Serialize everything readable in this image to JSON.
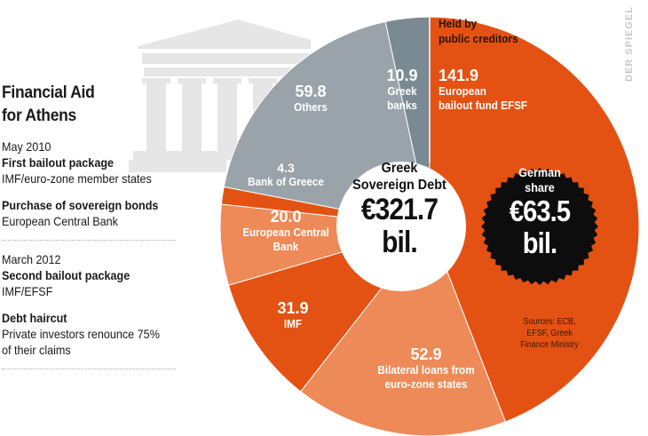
{
  "sidebar": {
    "title_line1": "Financial Aid",
    "title_line2": "for Athens",
    "events": [
      {
        "date": "May 2010",
        "head": "First bailout package",
        "desc": "IMF/euro-zone member states"
      },
      {
        "date": "",
        "head": "Purchase of sovereign bonds",
        "desc": "European Central Bank"
      },
      {
        "date": "March 2012",
        "head": "Second bailout package",
        "desc": "IMF/EFSF"
      },
      {
        "date": "",
        "head": "Debt haircut",
        "desc": "Private investors renounce 75%",
        "desc2": "of their claims"
      }
    ]
  },
  "held_by": {
    "line1": "Held by",
    "line2": "public creditors"
  },
  "center": {
    "line1": "Greek",
    "line2": "Sovereign Debt",
    "amount": "€321.7",
    "unit": "bil."
  },
  "german": {
    "line1": "German",
    "line2": "share",
    "amount": "€63.5",
    "unit": "bil."
  },
  "sources": {
    "line1": "Sources: ECB,",
    "line2": "EFSF, Greek",
    "line3": "Finance Ministry"
  },
  "credit": "DER SPIEGEL",
  "slices": {
    "efsf": {
      "value": "141.9",
      "name1": "European",
      "name2": "bailout fund EFSF"
    },
    "bilateral": {
      "value": "52.9",
      "name1": "Bilateral loans from",
      "name2": "euro-zone states"
    },
    "imf": {
      "value": "31.9",
      "name1": "IMF"
    },
    "ecb": {
      "value": "20.0",
      "name1": "European Central",
      "name2": "Bank"
    },
    "bog": {
      "value": "4.3",
      "name1": "Bank of Greece"
    },
    "others": {
      "value": "59.8",
      "name1": "Others"
    },
    "greek_banks": {
      "value": "10.9",
      "name1": "Greek",
      "name2": "banks"
    }
  },
  "colors": {
    "dark_orange": "#e35213",
    "light_orange": "#ee8a57",
    "gray": "#9aa3a9",
    "dark_gray": "#7a8a92",
    "temple": "#e6e6e6",
    "black": "#0d0d0d"
  },
  "chart_data": {
    "type": "pie",
    "title": "Financial Aid for Athens — Greek Sovereign Debt €321.7 bil.",
    "unit": "€ billion",
    "categories": [
      "European bailout fund EFSF",
      "Bilateral loans from euro-zone states",
      "IMF",
      "European Central Bank",
      "Bank of Greece",
      "Others",
      "Greek banks"
    ],
    "values": [
      141.9,
      52.9,
      31.9,
      20.0,
      4.3,
      59.8,
      10.9
    ],
    "groups": {
      "Held by public creditors": [
        "European bailout fund EFSF",
        "Bilateral loans from euro-zone states",
        "IMF",
        "European Central Bank",
        "Bank of Greece"
      ],
      "Private": [
        "Others",
        "Greek banks"
      ]
    },
    "total": 321.7,
    "annotations": [
      "German share €63.5 bil.",
      "Held by public creditors"
    ],
    "donut": true
  }
}
